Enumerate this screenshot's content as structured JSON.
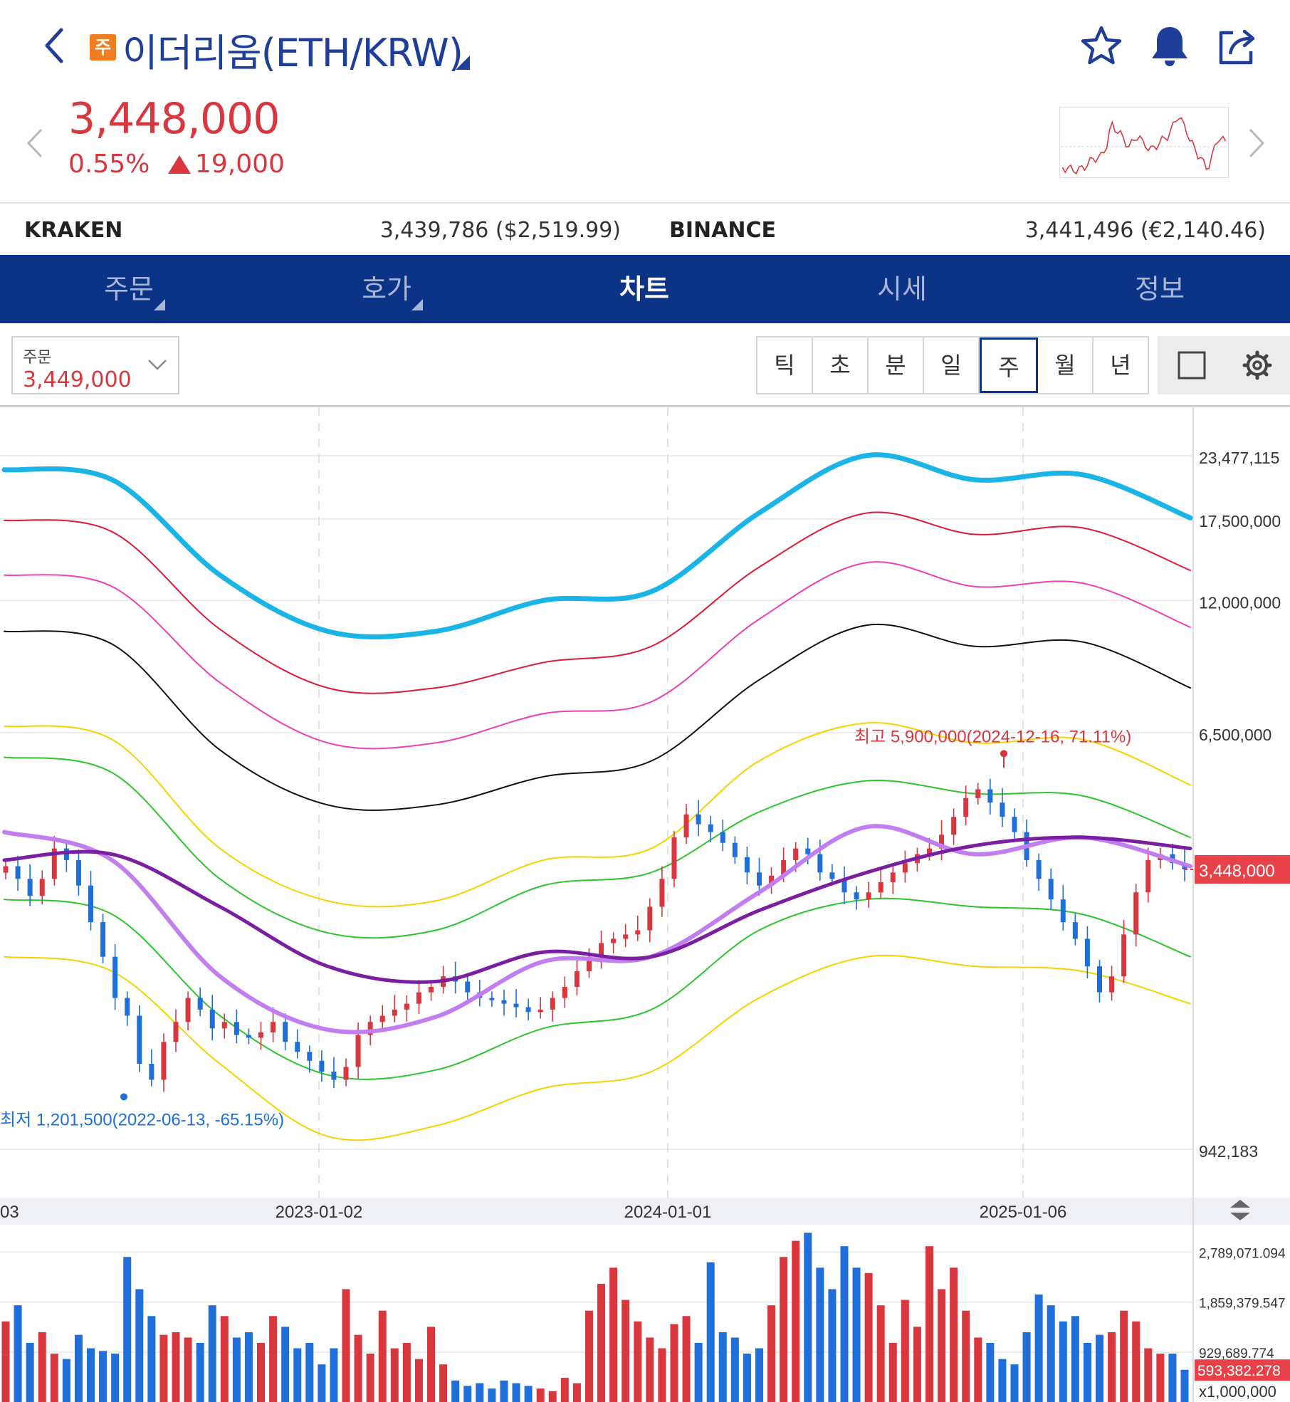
{
  "header": {
    "badge": "주",
    "title": "이더리움(ETH/KRW)",
    "icons": [
      "back-icon",
      "star-icon",
      "bell-icon",
      "share-icon"
    ]
  },
  "quote": {
    "price": "3,448,000",
    "change_pct": "0.55%",
    "change_amt": "19,000",
    "direction": "up",
    "color_up": "#d9363e",
    "color_down": "#1e6fd9"
  },
  "exchanges": [
    {
      "name": "KRAKEN",
      "value": "3,439,786 ($2,519.99)"
    },
    {
      "name": "BINANCE",
      "value": "3,441,496 (€2,140.46)"
    }
  ],
  "tabs": [
    {
      "label": "주문",
      "active": false,
      "has_menu": true
    },
    {
      "label": "호가",
      "active": false,
      "has_menu": true
    },
    {
      "label": "차트",
      "active": true,
      "has_menu": false
    },
    {
      "label": "시세",
      "active": false,
      "has_menu": false
    },
    {
      "label": "정보",
      "active": false,
      "has_menu": false
    }
  ],
  "order_box": {
    "label": "주문",
    "value": "3,449,000"
  },
  "periods": [
    {
      "label": "틱",
      "active": false
    },
    {
      "label": "초",
      "active": false
    },
    {
      "label": "분",
      "active": false
    },
    {
      "label": "일",
      "active": false
    },
    {
      "label": "주",
      "active": true
    },
    {
      "label": "월",
      "active": false
    },
    {
      "label": "년",
      "active": false
    }
  ],
  "toolbar_icons": [
    "square-icon",
    "gear-icon"
  ],
  "chart_data": {
    "type": "candlestick",
    "interval": "주",
    "scale": "log",
    "y_tick_labels": [
      "23,477,115",
      "17,500,000",
      "12,000,000",
      "6,500,000",
      "942,183"
    ],
    "y_ticks": [
      23477115,
      17500000,
      12000000,
      6500000,
      942183
    ],
    "x_tick_labels": [
      "03",
      "2023-01-02",
      "2024-01-01",
      "2025-01-06"
    ],
    "current_price_label": "3,448,000",
    "current_price": 3448000,
    "high_annotation": "최고 5,900,000(2024-12-16, 71.11%)",
    "low_annotation": "최저 1,201,500(2022-06-13, -65.15%)",
    "bands": [
      {
        "color": "#1ab4e6",
        "values": [
          22000000,
          21000000,
          13500000,
          10400000,
          10400000,
          12000000,
          12500000,
          18000000,
          23500000,
          21000000,
          21500000,
          17600000
        ]
      },
      {
        "color": "#e0193a",
        "values": [
          17400000,
          16500000,
          10500000,
          8000000,
          8000000,
          9000000,
          9700000,
          14000000,
          18000000,
          16300000,
          16800000,
          13800000
        ]
      },
      {
        "color": "#ee3fb4",
        "values": [
          13500000,
          12800000,
          8200000,
          6200000,
          6200000,
          7100000,
          7500000,
          11000000,
          14300000,
          12800000,
          13000000,
          10600000
        ]
      },
      {
        "color": "#111111",
        "values": [
          10400000,
          9800000,
          6000000,
          4650000,
          4650000,
          5300000,
          5700000,
          8300000,
          10700000,
          9700000,
          9900000,
          8000000
        ]
      },
      {
        "color": "#f5d300",
        "values": [
          6700000,
          6300000,
          3800000,
          2980000,
          2980000,
          3600000,
          3800000,
          5700000,
          6800000,
          6200000,
          6300000,
          5100000
        ]
      },
      {
        "color": "#2ec42e",
        "values": [
          5800000,
          5400000,
          3300000,
          2570000,
          2600000,
          3200000,
          3400000,
          4500000,
          5200000,
          4900000,
          4850000,
          4000000
        ]
      },
      {
        "color": "#2ec42e",
        "values": [
          3000000,
          2800000,
          1750000,
          1330000,
          1360000,
          1650000,
          1800000,
          2600000,
          3000000,
          2900000,
          2800000,
          2300000
        ]
      },
      {
        "color": "#f5d300",
        "values": [
          2300000,
          2150000,
          1400000,
          1000000,
          1050000,
          1250000,
          1350000,
          1900000,
          2300000,
          2200000,
          2150000,
          1850000
        ]
      }
    ],
    "moving_averages": [
      {
        "color": "#c17ef0",
        "width": 6,
        "values": [
          4100000,
          3600000,
          2100000,
          1640000,
          1740000,
          2250000,
          2300000,
          3100000,
          4200000,
          3700000,
          4000000,
          3500000
        ]
      },
      {
        "color": "#7b1fa2",
        "width": 5,
        "values": [
          3600000,
          3700000,
          2900000,
          2200000,
          2050000,
          2350000,
          2300000,
          2850000,
          3400000,
          3850000,
          4000000,
          3800000
        ]
      }
    ],
    "candles": [
      3500000,
      3300000,
      3050000,
      3300000,
      3800000,
      3600000,
      3200000,
      2700000,
      2300000,
      1900000,
      1750000,
      1400000,
      1300000,
      1550000,
      1700000,
      1900000,
      1800000,
      1650000,
      1700000,
      1600000,
      1580000,
      1620000,
      1700000,
      1550000,
      1480000,
      1420000,
      1350000,
      1300000,
      1380000,
      1600000,
      1700000,
      1750000,
      1800000,
      1850000,
      1950000,
      2000000,
      2100000,
      2050000,
      1950000,
      1900000,
      1880000,
      1850000,
      1820000,
      1780000,
      1800000,
      1900000,
      2000000,
      2150000,
      2300000,
      2450000,
      2500000,
      2550000,
      2600000,
      2900000,
      3300000,
      4000000,
      4450000,
      4250000,
      4100000,
      3900000,
      3650000,
      3400000,
      3200000,
      3350000,
      3600000,
      3800000,
      3700000,
      3400000,
      3300000,
      3100000,
      3000000,
      3100000,
      3250000,
      3400000,
      3550000,
      3700000,
      3800000,
      4050000,
      4400000,
      4800000,
      5000000,
      4700000,
      4400000,
      4100000,
      3600000,
      3300000,
      3000000,
      2700000,
      2500000,
      2200000,
      1950000,
      2100000,
      2550000,
      3100000,
      3600000,
      3700000,
      3550000,
      3448000
    ],
    "volume_tick_labels": [
      "2,789,071.094",
      "1,859,379.547",
      "929,689.774",
      "x1,000,000"
    ],
    "volume_ticks": [
      2789071.094,
      1859379.547,
      929689.774
    ],
    "volume_current_label": "593,382.278",
    "volume_current": 593382.278,
    "volume_values": [
      1500000,
      1800000,
      1100000,
      1300000,
      900000,
      800000,
      1250000,
      1000000,
      950000,
      900000,
      2700000,
      2100000,
      1600000,
      1250000,
      1300000,
      1200000,
      1100000,
      1800000,
      1600000,
      1200000,
      1300000,
      1100000,
      1600000,
      1400000,
      1000000,
      1100000,
      700000,
      1000000,
      2100000,
      1250000,
      900000,
      1700000,
      1000000,
      1100000,
      800000,
      1400000,
      700000,
      400000,
      300000,
      350000,
      250000,
      400000,
      350000,
      300000,
      250000,
      200000,
      450000,
      350000,
      1700000,
      2200000,
      2500000,
      1900000,
      1500000,
      1200000,
      1000000,
      1450000,
      1600000,
      1100000,
      2600000,
      1300000,
      1200000,
      900000,
      1000000,
      1800000,
      2700000,
      3000000,
      3150000,
      2500000,
      2100000,
      2900000,
      2500000,
      2400000,
      1800000,
      1100000,
      1900000,
      1400000,
      2900000,
      2100000,
      2500000,
      1700000,
      1200000,
      1100000,
      800000,
      700000,
      1300000,
      2000000,
      1800000,
      1500000,
      1600000,
      1100000,
      1250000,
      1300000,
      1700000,
      1500000,
      1000000,
      900000,
      900000,
      600000
    ]
  }
}
